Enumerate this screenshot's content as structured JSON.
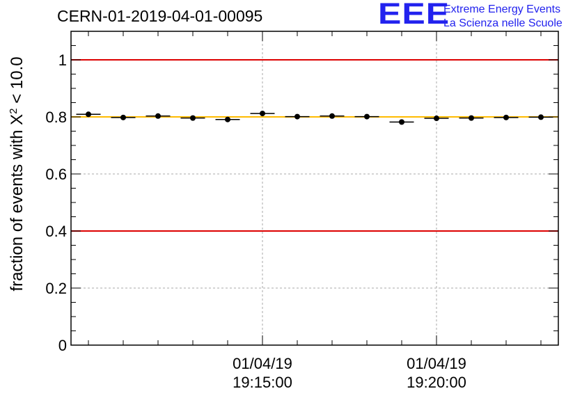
{
  "header": {
    "title": "CERN-01-2019-04-01-00095",
    "logo": "EEE",
    "logo_line1": "Extreme Energy Events",
    "logo_line2": "La Scienza nelle Scuole"
  },
  "chart_data": {
    "type": "scatter",
    "ylabel_prefix": "fraction of events with X",
    "ylabel_sup": "2",
    "ylabel_suffix": " < 10.0",
    "ylim": [
      0,
      1.1
    ],
    "yticks": [
      "0",
      "0.2",
      "0.4",
      "0.6",
      "0.8",
      "1"
    ],
    "xlim_minutes": [
      9.5,
      23.5
    ],
    "xticks": [
      {
        "minute": 15,
        "date": "01/04/19",
        "time": "19:15:00"
      },
      {
        "minute": 20,
        "date": "01/04/19",
        "time": "19:20:00"
      }
    ],
    "x_minor_step_minutes": 1,
    "reference_lines": [
      {
        "y": 1.0,
        "color": "#dd0000"
      },
      {
        "y": 0.4,
        "color": "#dd0000"
      },
      {
        "y": 0.8,
        "color": "#ffbb00"
      }
    ],
    "grid": true,
    "points": [
      {
        "minute": 10.0,
        "y": 0.809
      },
      {
        "minute": 11.0,
        "y": 0.798
      },
      {
        "minute": 12.0,
        "y": 0.803
      },
      {
        "minute": 13.0,
        "y": 0.796
      },
      {
        "minute": 14.0,
        "y": 0.791
      },
      {
        "minute": 15.0,
        "y": 0.812
      },
      {
        "minute": 16.0,
        "y": 0.801
      },
      {
        "minute": 17.0,
        "y": 0.803
      },
      {
        "minute": 18.0,
        "y": 0.801
      },
      {
        "minute": 19.0,
        "y": 0.782
      },
      {
        "minute": 20.0,
        "y": 0.795
      },
      {
        "minute": 21.0,
        "y": 0.796
      },
      {
        "minute": 22.0,
        "y": 0.798
      },
      {
        "minute": 23.0,
        "y": 0.799
      }
    ],
    "point_width_minutes": 0.7
  }
}
